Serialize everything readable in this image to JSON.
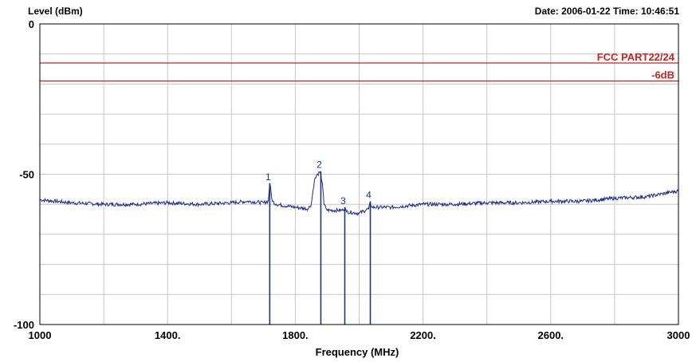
{
  "header": {
    "date_time": "Date: 2006-01-22  Time: 10:46:51"
  },
  "chart_data": {
    "type": "line",
    "title": "",
    "ylabel": "Level (dBm)",
    "xlabel": "Frequency (MHz)",
    "xlim": [
      1000,
      3000
    ],
    "ylim": [
      -100,
      0
    ],
    "x_ticks": [
      {
        "value": 1000,
        "label": "1000"
      },
      {
        "value": 1400,
        "label": "1400."
      },
      {
        "value": 1800,
        "label": "1800."
      },
      {
        "value": 2200,
        "label": "2200."
      },
      {
        "value": 2600,
        "label": "2600."
      },
      {
        "value": 3000,
        "label": "3000"
      }
    ],
    "y_ticks": [
      {
        "value": 0,
        "label": "0"
      },
      {
        "value": -50,
        "label": "-50"
      },
      {
        "value": -100,
        "label": "-100"
      }
    ],
    "grid": true,
    "colors": {
      "trace": "#1a2a8c",
      "limit": "#cc2222",
      "marker": "#1a3a78",
      "grid": "#c8c8c8"
    },
    "limit_lines": [
      {
        "name": "FCC PART22/24",
        "value": -13
      },
      {
        "name": "-6dB",
        "value": -19
      }
    ],
    "markers": [
      {
        "label": "1",
        "x": 1720,
        "y": -53
      },
      {
        "label": "2",
        "x": 1880,
        "y": -49
      },
      {
        "label": "3",
        "x": 1955,
        "y": -61
      },
      {
        "label": "4",
        "x": 2035,
        "y": -59
      }
    ],
    "series": [
      {
        "x": [
          1000,
          1100,
          1200,
          1300,
          1400,
          1500,
          1600,
          1650,
          1700,
          1715,
          1720,
          1728,
          1740,
          1800,
          1840,
          1850,
          1860,
          1870,
          1878,
          1885,
          1890,
          1900,
          1950,
          1955,
          1960,
          2000,
          2030,
          2035,
          2040,
          2100,
          2200,
          2300,
          2400,
          2500,
          2600,
          2700,
          2800,
          2900,
          2950,
          3000
        ],
        "values": [
          -58.5,
          -59.5,
          -60,
          -60,
          -59.5,
          -60,
          -59.5,
          -59,
          -59.5,
          -59,
          -53,
          -59,
          -60,
          -61,
          -61.5,
          -60,
          -52,
          -50,
          -49.5,
          -53,
          -60,
          -62,
          -62,
          -61,
          -62.5,
          -63,
          -61.5,
          -59.5,
          -61,
          -61,
          -60,
          -60,
          -59.5,
          -59.5,
          -59,
          -59,
          -58,
          -57.5,
          -56.5,
          -55.5
        ]
      }
    ]
  }
}
